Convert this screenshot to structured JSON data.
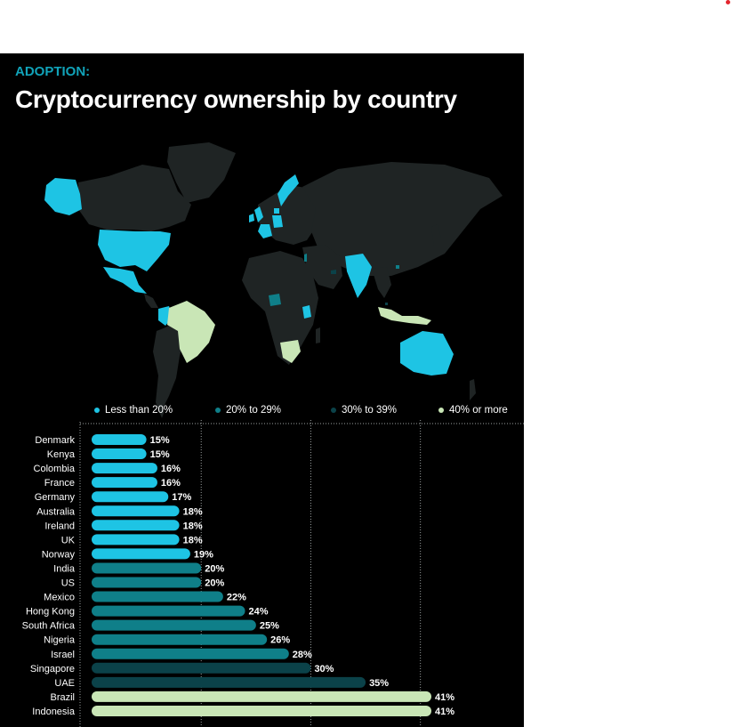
{
  "kicker": "ADOPTION:",
  "title": "Cryptocurrency ownership by country",
  "colors": {
    "less_than_20": "#1ec4e4",
    "20_to_29": "#0f7f89",
    "30_to_39": "#0b4249",
    "40_or_more": "#c9e6b6",
    "land": "#1f2424",
    "background": "#000000",
    "accent": "#11a3b9"
  },
  "legend": [
    {
      "label": "Less than 20%",
      "color": "#1ec4e4"
    },
    {
      "label": "20% to 29%",
      "color": "#0f7f89"
    },
    {
      "label": "30% to 39%",
      "color": "#0b4249"
    },
    {
      "label": "40% or more",
      "color": "#c9e6b6"
    }
  ],
  "chart_data": {
    "type": "bar",
    "orientation": "horizontal",
    "categories": [
      "Denmark",
      "Kenya",
      "Colombia",
      "France",
      "Germany",
      "Australia",
      "Ireland",
      "UK",
      "Norway",
      "India",
      "US",
      "Mexico",
      "Hong Kong",
      "South Africa",
      "Nigeria",
      "Israel",
      "Singapore",
      "UAE",
      "Brazil",
      "Indonesia"
    ],
    "values": [
      15,
      15,
      16,
      16,
      17,
      18,
      18,
      18,
      19,
      20,
      20,
      22,
      24,
      25,
      26,
      28,
      30,
      35,
      41,
      41
    ],
    "value_labels": [
      "15%",
      "15%",
      "16%",
      "16%",
      "17%",
      "18%",
      "18%",
      "18%",
      "19%",
      "20%",
      "20%",
      "22%",
      "24%",
      "25%",
      "26%",
      "28%",
      "30%",
      "35%",
      "41%",
      "41%"
    ],
    "xlim": [
      10,
      41
    ],
    "gridlines_x": [
      20,
      30,
      40
    ],
    "grid": "dotted vertical",
    "title": "",
    "xlabel": "",
    "ylabel": ""
  }
}
